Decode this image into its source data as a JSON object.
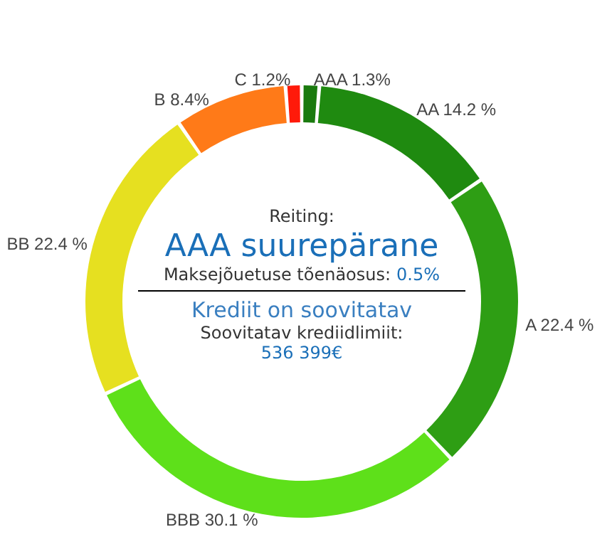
{
  "chart_data": {
    "type": "donut",
    "categories": [
      "AAA",
      "AA",
      "A",
      "BBB",
      "BB",
      "B",
      "C"
    ],
    "values": [
      1.3,
      14.2,
      22.4,
      30.1,
      22.4,
      8.4,
      1.2
    ],
    "value_labels": [
      "1.3%",
      "14.2 %",
      "22.4 %",
      "30.1 %",
      "22.4 %",
      "8.4%",
      "1.2%"
    ],
    "colors": [
      "#1a7a0e",
      "#1f8a10",
      "#2e9e14",
      "#5ee01a",
      "#e6e020",
      "#ff7a18",
      "#ff1a0a"
    ],
    "annotations": [
      "Reiting:",
      "AAA suurepärane",
      "Maksejõuetuse tõenäosus:",
      "0.5%",
      "Krediit on soovitatav",
      "Soovitatav krediidlimiit:",
      "536 399€"
    ],
    "legend": false
  }
}
